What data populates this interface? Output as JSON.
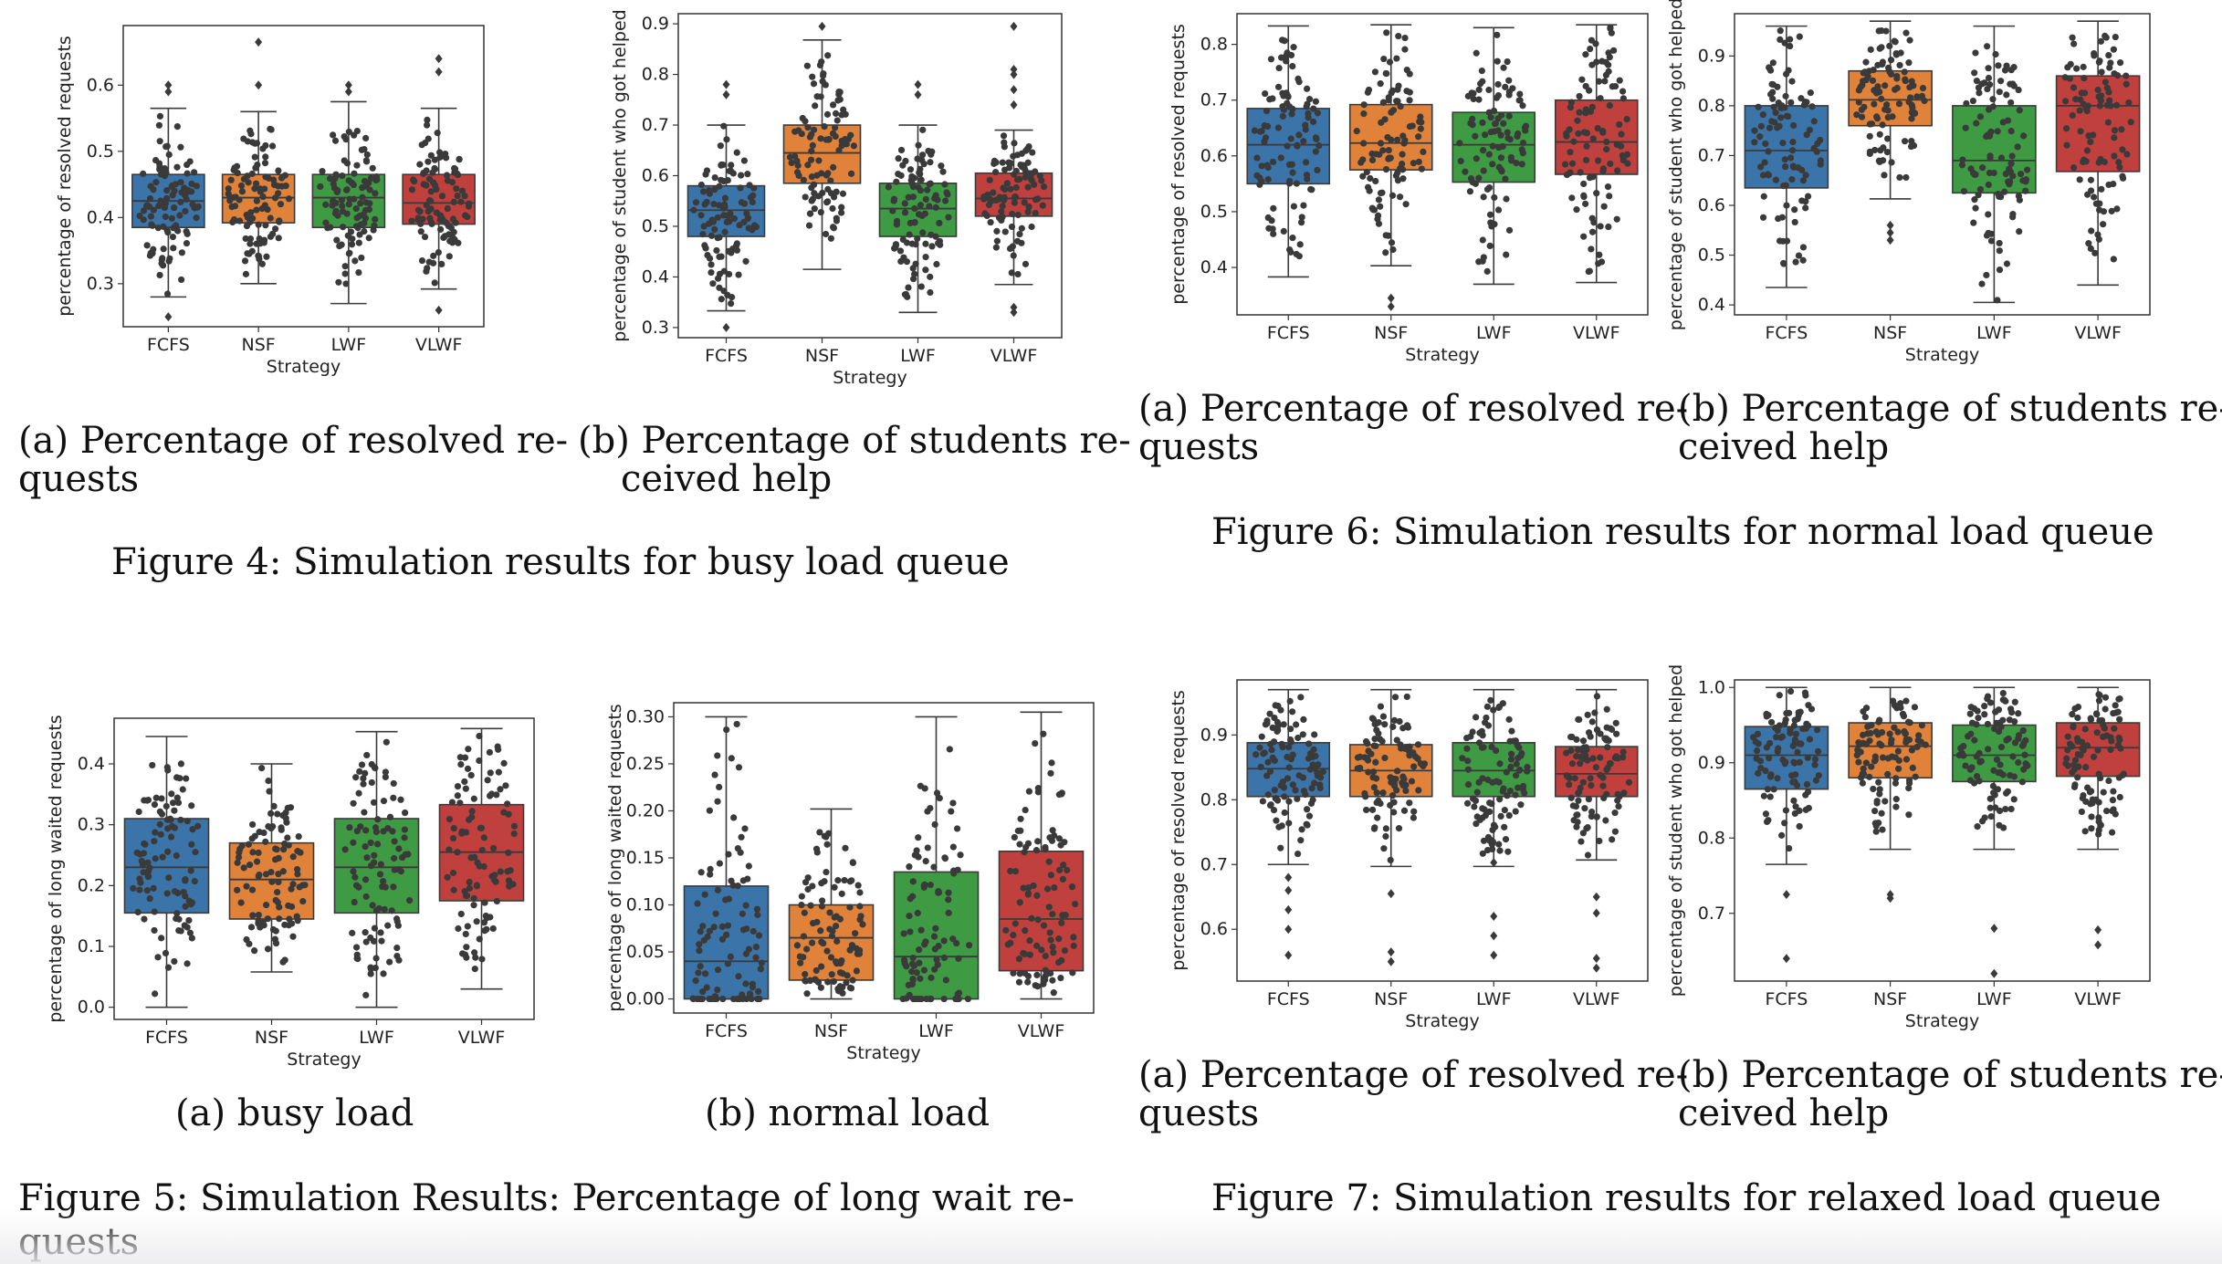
{
  "colors": {
    "FCFS": "#3a74a8",
    "NSF": "#e0823a",
    "LWF": "#3f9a44",
    "VLWF": "#c0403d",
    "dot": "#3a3a3a",
    "frame": "#333333"
  },
  "captions": {
    "fig4_a": "(a)  Percentage  of  resolved  re-",
    "fig4_a2": "quests",
    "fig4_b": "(b) Percentage of students re-",
    "fig4_b2": "ceived help",
    "fig4": "Figure 4: Simulation results for busy load queue",
    "fig6_a": "(a)  Percentage  of  resolved  re-",
    "fig6_a2": "quests",
    "fig6_b": "(b)  Percentage  of  students  re-",
    "fig6_b2": "ceived help",
    "fig6": "Figure 6: Simulation results for normal load queue",
    "fig5_a": "(a) busy load",
    "fig5_b": "(b) normal load",
    "fig5": "Figure 5:  Simulation Results:  Percentage of long wait re-",
    "fig5_2": "quests",
    "fig7_a": "(a)  Percentage  of  resolved  re-",
    "fig7_a2": "quests",
    "fig7_b": "(b)  Percentage  of  students  re-",
    "fig7_b2": "ceived help",
    "fig7": "Figure 7: Simulation results for relaxed load queue"
  },
  "chart_data": [
    {
      "id": "c4a",
      "type": "box",
      "figure": "Figure 4 (a)",
      "xlabel": "Strategy",
      "ylabel": "percentage of resolved requests",
      "categories": [
        "FCFS",
        "NSF",
        "LWF",
        "VLWF"
      ],
      "ylim": [
        0.235,
        0.69
      ],
      "yticks": [
        0.3,
        0.4,
        0.5,
        0.6
      ],
      "tick_decimals": 1,
      "boxes": [
        {
          "whislo": 0.28,
          "q1": 0.385,
          "med": 0.425,
          "q3": 0.465,
          "whishi": 0.565,
          "fliers": [
            0.25,
            0.59,
            0.6
          ]
        },
        {
          "whislo": 0.3,
          "q1": 0.392,
          "med": 0.43,
          "q3": 0.465,
          "whishi": 0.56,
          "fliers": [
            0.6,
            0.665
          ]
        },
        {
          "whislo": 0.27,
          "q1": 0.385,
          "med": 0.43,
          "q3": 0.465,
          "whishi": 0.575,
          "fliers": [
            0.59,
            0.6
          ]
        },
        {
          "whislo": 0.292,
          "q1": 0.39,
          "med": 0.422,
          "q3": 0.465,
          "whishi": 0.565,
          "fliers": [
            0.26,
            0.62,
            0.64
          ]
        }
      ]
    },
    {
      "id": "c4b",
      "type": "box",
      "figure": "Figure 4 (b)",
      "xlabel": "Strategy",
      "ylabel": "percentage of student who got helped",
      "categories": [
        "FCFS",
        "NSF",
        "LWF",
        "VLWF"
      ],
      "ylim": [
        0.28,
        0.92
      ],
      "yticks": [
        0.3,
        0.4,
        0.5,
        0.6,
        0.7,
        0.8,
        0.9
      ],
      "tick_decimals": 1,
      "boxes": [
        {
          "whislo": 0.333,
          "q1": 0.48,
          "med": 0.532,
          "q3": 0.58,
          "whishi": 0.7,
          "fliers": [
            0.3,
            0.76,
            0.78
          ]
        },
        {
          "whislo": 0.415,
          "q1": 0.585,
          "med": 0.645,
          "q3": 0.7,
          "whishi": 0.868,
          "fliers": [
            0.895
          ]
        },
        {
          "whislo": 0.33,
          "q1": 0.48,
          "med": 0.535,
          "q3": 0.585,
          "whishi": 0.7,
          "fliers": [
            0.76,
            0.78
          ]
        },
        {
          "whislo": 0.385,
          "q1": 0.52,
          "med": 0.555,
          "q3": 0.605,
          "whishi": 0.69,
          "fliers": [
            0.33,
            0.34,
            0.74,
            0.77,
            0.8,
            0.81,
            0.895
          ]
        }
      ]
    },
    {
      "id": "c6a",
      "type": "box",
      "figure": "Figure 6 (a)",
      "xlabel": "Strategy",
      "ylabel": "percentage of resolved requests",
      "categories": [
        "FCFS",
        "NSF",
        "LWF",
        "VLWF"
      ],
      "ylim": [
        0.315,
        0.855
      ],
      "yticks": [
        0.4,
        0.5,
        0.6,
        0.7,
        0.8
      ],
      "tick_decimals": 1,
      "boxes": [
        {
          "whislo": 0.383,
          "q1": 0.55,
          "med": 0.62,
          "q3": 0.685,
          "whishi": 0.833,
          "fliers": []
        },
        {
          "whislo": 0.403,
          "q1": 0.575,
          "med": 0.623,
          "q3": 0.692,
          "whishi": 0.835,
          "fliers": [
            0.33,
            0.345
          ]
        },
        {
          "whislo": 0.37,
          "q1": 0.553,
          "med": 0.62,
          "q3": 0.678,
          "whishi": 0.83,
          "fliers": []
        },
        {
          "whislo": 0.373,
          "q1": 0.567,
          "med": 0.625,
          "q3": 0.7,
          "whishi": 0.835,
          "fliers": []
        }
      ]
    },
    {
      "id": "c6b",
      "type": "box",
      "figure": "Figure 6 (b)",
      "xlabel": "Strategy",
      "ylabel": "percentage of student who got helped",
      "categories": [
        "FCFS",
        "NSF",
        "LWF",
        "VLWF"
      ],
      "ylim": [
        0.38,
        0.985
      ],
      "yticks": [
        0.4,
        0.5,
        0.6,
        0.7,
        0.8,
        0.9
      ],
      "tick_decimals": 1,
      "boxes": [
        {
          "whislo": 0.435,
          "q1": 0.635,
          "med": 0.71,
          "q3": 0.8,
          "whishi": 0.96,
          "fliers": []
        },
        {
          "whislo": 0.613,
          "q1": 0.76,
          "med": 0.812,
          "q3": 0.87,
          "whishi": 0.97,
          "fliers": [
            0.53,
            0.545,
            0.56
          ]
        },
        {
          "whislo": 0.405,
          "q1": 0.625,
          "med": 0.69,
          "q3": 0.8,
          "whishi": 0.96,
          "fliers": []
        },
        {
          "whislo": 0.44,
          "q1": 0.668,
          "med": 0.8,
          "q3": 0.86,
          "whishi": 0.97,
          "fliers": []
        }
      ]
    },
    {
      "id": "c5a",
      "type": "box",
      "figure": "Figure 5 (a)",
      "xlabel": "Strategy",
      "ylabel": "percentage of long waited requests",
      "categories": [
        "FCFS",
        "NSF",
        "LWF",
        "VLWF"
      ],
      "ylim": [
        -0.02,
        0.475
      ],
      "yticks": [
        0.0,
        0.1,
        0.2,
        0.3,
        0.4
      ],
      "tick_decimals": 1,
      "boxes": [
        {
          "whislo": 0.0,
          "q1": 0.155,
          "med": 0.23,
          "q3": 0.31,
          "whishi": 0.445,
          "fliers": []
        },
        {
          "whislo": 0.058,
          "q1": 0.145,
          "med": 0.21,
          "q3": 0.27,
          "whishi": 0.4,
          "fliers": []
        },
        {
          "whislo": 0.0,
          "q1": 0.155,
          "med": 0.23,
          "q3": 0.31,
          "whishi": 0.453,
          "fliers": []
        },
        {
          "whislo": 0.03,
          "q1": 0.175,
          "med": 0.255,
          "q3": 0.333,
          "whishi": 0.458,
          "fliers": []
        }
      ]
    },
    {
      "id": "c5b",
      "type": "box",
      "figure": "Figure 5 (b)",
      "xlabel": "Strategy",
      "ylabel": "percentage of long waited requests",
      "categories": [
        "FCFS",
        "NSF",
        "LWF",
        "VLWF"
      ],
      "ylim": [
        -0.015,
        0.315
      ],
      "yticks": [
        0.0,
        0.05,
        0.1,
        0.15,
        0.2,
        0.25,
        0.3
      ],
      "tick_decimals": 2,
      "boxes": [
        {
          "whislo": 0.0,
          "q1": 0.0,
          "med": 0.04,
          "q3": 0.12,
          "whishi": 0.3,
          "fliers": []
        },
        {
          "whislo": 0.0,
          "q1": 0.02,
          "med": 0.065,
          "q3": 0.1,
          "whishi": 0.202,
          "fliers": []
        },
        {
          "whislo": 0.0,
          "q1": 0.0,
          "med": 0.045,
          "q3": 0.135,
          "whishi": 0.3,
          "fliers": []
        },
        {
          "whislo": 0.0,
          "q1": 0.03,
          "med": 0.085,
          "q3": 0.157,
          "whishi": 0.305,
          "fliers": []
        }
      ]
    },
    {
      "id": "c7a",
      "type": "box",
      "figure": "Figure 7 (a)",
      "xlabel": "Strategy",
      "ylabel": "percentage of resolved requests",
      "categories": [
        "FCFS",
        "NSF",
        "LWF",
        "VLWF"
      ],
      "ylim": [
        0.52,
        0.985
      ],
      "yticks": [
        0.6,
        0.7,
        0.8,
        0.9
      ],
      "tick_decimals": 1,
      "boxes": [
        {
          "whislo": 0.7,
          "q1": 0.805,
          "med": 0.848,
          "q3": 0.888,
          "whishi": 0.97,
          "fliers": [
            0.56,
            0.6,
            0.63,
            0.66,
            0.68
          ]
        },
        {
          "whislo": 0.697,
          "q1": 0.805,
          "med": 0.845,
          "q3": 0.885,
          "whishi": 0.97,
          "fliers": [
            0.55,
            0.565,
            0.655
          ]
        },
        {
          "whislo": 0.697,
          "q1": 0.805,
          "med": 0.845,
          "q3": 0.888,
          "whishi": 0.97,
          "fliers": [
            0.56,
            0.59,
            0.62,
            0.703
          ]
        },
        {
          "whislo": 0.707,
          "q1": 0.805,
          "med": 0.84,
          "q3": 0.882,
          "whishi": 0.97,
          "fliers": [
            0.54,
            0.555,
            0.625,
            0.65
          ]
        }
      ]
    },
    {
      "id": "c7b",
      "type": "box",
      "figure": "Figure 7 (b)",
      "xlabel": "Strategy",
      "ylabel": "percentage of student who got helped",
      "categories": [
        "FCFS",
        "NSF",
        "LWF",
        "VLWF"
      ],
      "ylim": [
        0.61,
        1.01
      ],
      "yticks": [
        0.7,
        0.8,
        0.9,
        1.0
      ],
      "tick_decimals": 1,
      "boxes": [
        {
          "whislo": 0.765,
          "q1": 0.865,
          "med": 0.91,
          "q3": 0.948,
          "whishi": 1.0,
          "fliers": [
            0.64,
            0.725
          ]
        },
        {
          "whislo": 0.785,
          "q1": 0.88,
          "med": 0.922,
          "q3": 0.953,
          "whishi": 1.0,
          "fliers": [
            0.72,
            0.725
          ]
        },
        {
          "whislo": 0.785,
          "q1": 0.875,
          "med": 0.91,
          "q3": 0.95,
          "whishi": 1.0,
          "fliers": [
            0.62,
            0.68
          ]
        },
        {
          "whislo": 0.785,
          "q1": 0.882,
          "med": 0.92,
          "q3": 0.953,
          "whishi": 1.0,
          "fliers": [
            0.658,
            0.678
          ]
        }
      ]
    }
  ]
}
